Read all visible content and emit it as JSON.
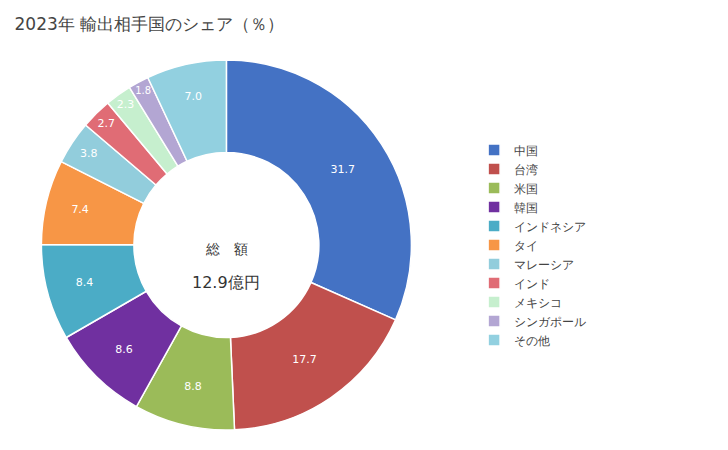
{
  "chart_data": {
    "type": "donut",
    "title": "2023年 輸出相手国のシェア（％）",
    "categories": [
      "中国",
      "台湾",
      "米国",
      "韓国",
      "インドネシア",
      "タイ",
      "マレーシア",
      "インド",
      "メキシコ",
      "シンガポール",
      "その他"
    ],
    "values": [
      31.7,
      17.7,
      8.8,
      8.6,
      8.4,
      7.4,
      3.8,
      2.7,
      2.3,
      1.8,
      7.0
    ],
    "value_labels": [
      "31.7",
      "17.7",
      "8.8",
      "8.6",
      "8.4",
      "7.4",
      "3.8",
      "2.7",
      "2.3",
      "1.8",
      "7.0"
    ],
    "colors": [
      "#4472C4",
      "#C0504D",
      "#9BBB59",
      "#7030A0",
      "#4BACC6",
      "#F79646",
      "#92CDDC",
      "#E06C75",
      "#C6EFCE",
      "#B3A6D3",
      "#92D0E0"
    ],
    "data_labels": true,
    "legend": "right",
    "annotations": [
      "総　額",
      "12.9億円"
    ]
  }
}
